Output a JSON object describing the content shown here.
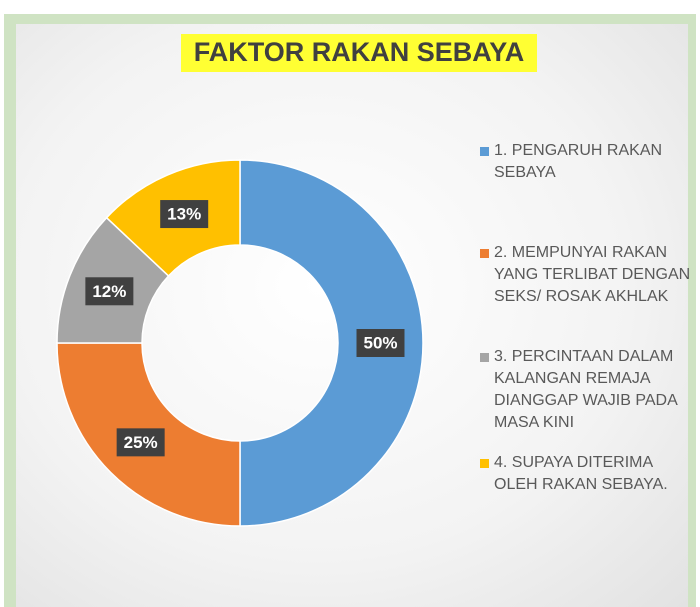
{
  "chart_data": {
    "type": "donut",
    "title": "FAKTOR RAKAN SEBAYA",
    "categories": [
      "1. PENGARUH RAKAN SEBAYA",
      "2. MEMPUNYAI RAKAN YANG TERLIBAT DENGAN SEKS/ ROSAK AKHLAK",
      "3. PERCINTAAN DALAM KALANGAN REMAJA DIANGGAP WAJIB PADA MASA KINI",
      "4. SUPAYA DITERIMA OLEH RAKAN SEBAYA."
    ],
    "values": [
      50,
      25,
      12,
      13
    ],
    "value_labels": [
      "50%",
      "25%",
      "12%",
      "13%"
    ],
    "colors": [
      "#5b9bd5",
      "#ed7d31",
      "#a5a5a5",
      "#ffc000"
    ],
    "legend": "right"
  }
}
